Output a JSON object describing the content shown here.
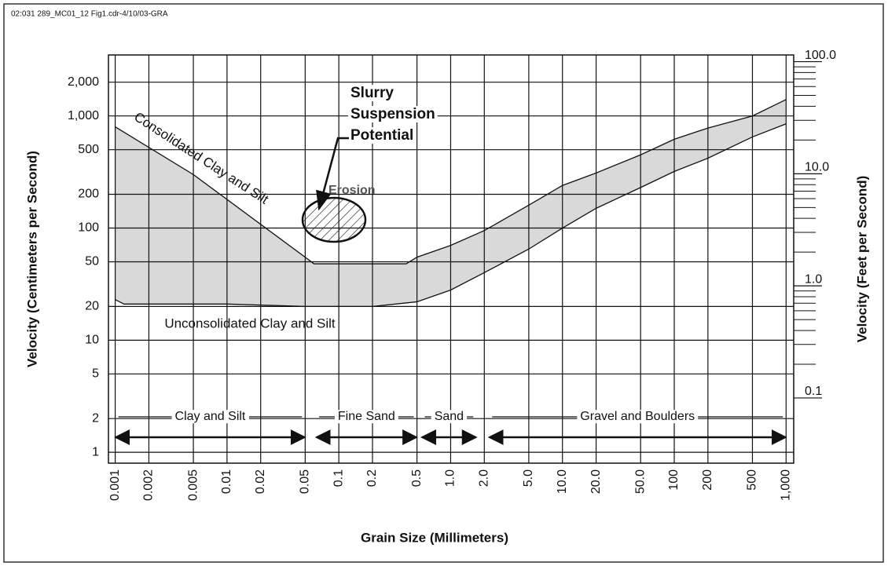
{
  "figure_id": "02:031 289_MC01_12 Fig1.cdr-4/10/03-GRA",
  "chart_data": {
    "type": "band",
    "xlabel": "Grain Size (Millimeters)",
    "ylabel": "Velocity (Centimeters per Second)",
    "y2label": "Velocity (Feet per Second)",
    "xscale": "log",
    "yscale": "log",
    "grid": true,
    "xlim": [
      0.00087,
      1170
    ],
    "ylim": [
      0.8,
      3500
    ],
    "y2lim": [
      0.0262,
      114.8
    ],
    "xticks": [
      0.001,
      0.002,
      0.005,
      0.01,
      0.02,
      0.05,
      0.1,
      0.2,
      0.5,
      {
        "value": 1,
        "label": "1.0"
      },
      {
        "value": 2,
        "label": "2.0"
      },
      {
        "value": 5,
        "label": "5.0"
      },
      {
        "value": 10,
        "label": "10.0"
      },
      {
        "value": 20,
        "label": "20.0"
      },
      {
        "value": 50,
        "label": "50.0"
      },
      100,
      200,
      500,
      {
        "value": 1000,
        "label": "1,000"
      }
    ],
    "yticks": [
      1,
      2,
      5,
      10,
      20,
      50,
      100,
      200,
      500,
      {
        "value": 1000,
        "label": "1,000"
      },
      {
        "value": 2000,
        "label": "2,000"
      }
    ],
    "y2ticks": [
      {
        "value": 100,
        "label": "100.0"
      },
      {
        "value": 10,
        "label": "10.0"
      },
      {
        "value": 1,
        "label": "1.0"
      },
      0.1
    ],
    "y2minorticks": [
      0.2,
      0.3,
      0.4,
      0.5,
      0.6,
      0.7,
      0.8,
      0.9,
      2,
      3,
      4,
      5,
      6,
      7,
      8,
      9,
      20,
      30,
      40,
      50,
      60,
      70,
      80,
      90
    ],
    "band_color": "#d9d9d9",
    "line_color": "#111111",
    "curves": [
      {
        "x": [
          0.001,
          0.005,
          0.05,
          0.06,
          0.4,
          0.5,
          1,
          2,
          5,
          10,
          20,
          50,
          100,
          200,
          500,
          1000
        ],
        "values": [
          800,
          300,
          55,
          48,
          48,
          55,
          70,
          95,
          160,
          240,
          310,
          450,
          620,
          780,
          1000,
          1400
        ]
      },
      {
        "x": [
          0.001,
          0.0012,
          0.01,
          0.05,
          0.2,
          0.5,
          1,
          2,
          5,
          10,
          20,
          50,
          100,
          200,
          500,
          1000
        ],
        "values": [
          23,
          21,
          21,
          20,
          20,
          22,
          28,
          40,
          65,
          100,
          150,
          230,
          320,
          420,
          650,
          850
        ]
      }
    ],
    "size_classes": [
      {
        "label": "Clay and Silt",
        "range": [
          0.001,
          0.05
        ]
      },
      {
        "label": "Fine Sand",
        "range": [
          0.0625,
          0.5
        ]
      },
      {
        "label": "Sand",
        "range": [
          0.55,
          1.7
        ]
      },
      {
        "label": "Gravel and Boulders",
        "range": [
          2.2,
          1000
        ]
      }
    ],
    "annotations": [
      "Consolidated Clay and Silt",
      "Unconsolidated Clay and Silt",
      "Erosion"
    ],
    "callout": [
      "Slurry",
      "Suspension",
      "Potential"
    ]
  }
}
